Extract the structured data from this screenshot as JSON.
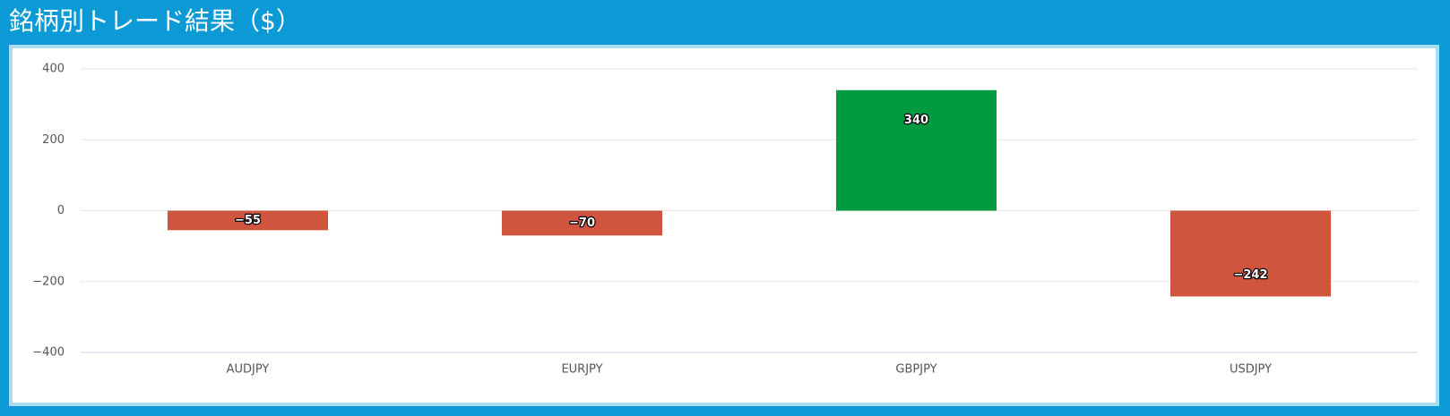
{
  "chart_data": {
    "type": "bar",
    "title": "銘柄別トレード結果（$）",
    "categories": [
      "AUDJPY",
      "EURJPY",
      "GBPJPY",
      "USDJPY"
    ],
    "values": [
      -55,
      -70,
      340,
      -242
    ],
    "value_labels": [
      "−55",
      "−70",
      "340",
      "−242"
    ],
    "positive_color": "#009b40",
    "negative_color": "#d0553f",
    "ylim": [
      -400,
      400
    ],
    "yticks": [
      {
        "value": -400,
        "label": "−400"
      },
      {
        "value": -200,
        "label": "−200"
      },
      0,
      200,
      400
    ],
    "grid": true
  }
}
